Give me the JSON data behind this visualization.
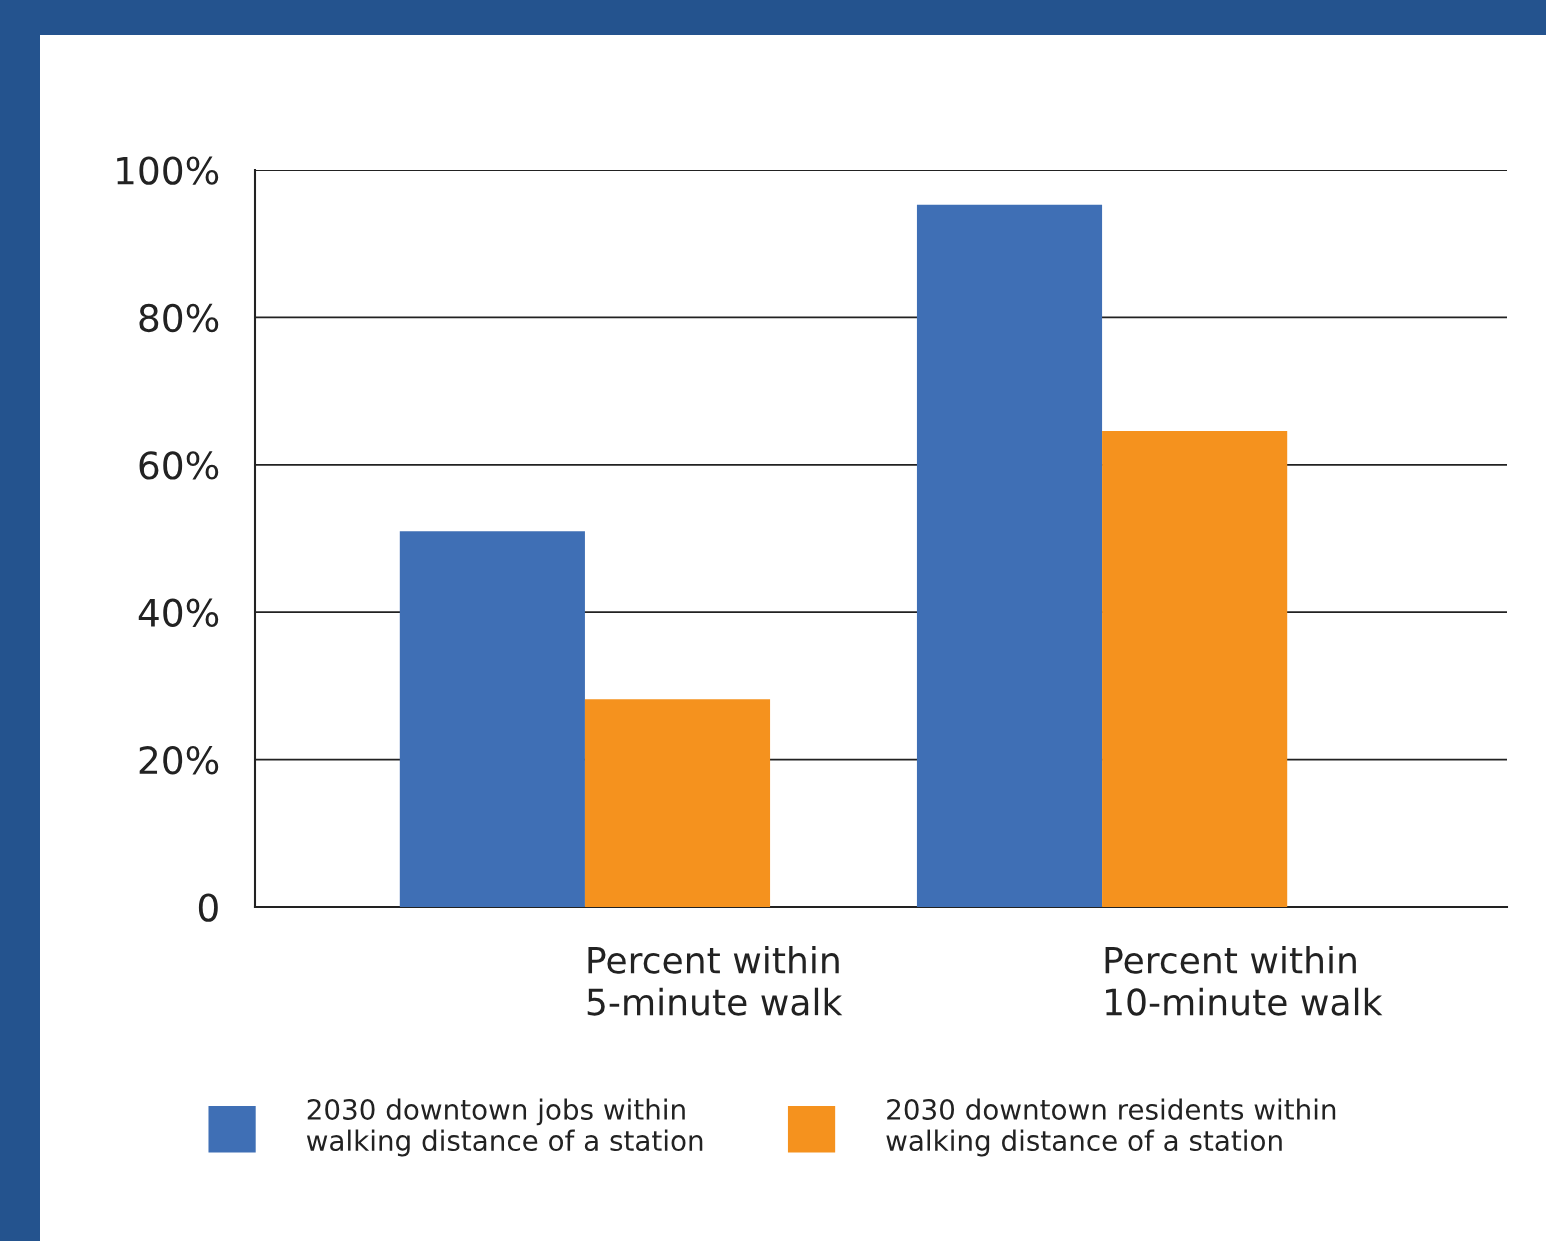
{
  "chart_data": {
    "type": "bar",
    "categories": [
      "Percent within\n5-minute walk",
      "Percent within\n10-minute walk"
    ],
    "series": [
      {
        "name": "2030 downtown jobs within\nwalking distance of a station",
        "color": "#3f6fb5",
        "values": [
          51.0,
          95.3
        ]
      },
      {
        "name": "2030 downtown residents within\nwalking distance of a station",
        "color": "#f5921e",
        "values": [
          28.2,
          64.6
        ]
      }
    ],
    "ylim": [
      0,
      100
    ],
    "yticks": [
      {
        "value": 0,
        "label": "0"
      },
      {
        "value": 20,
        "label": "20%"
      },
      {
        "value": 40,
        "label": "40%"
      },
      {
        "value": 60,
        "label": "60%"
      },
      {
        "value": 80,
        "label": "80%"
      },
      {
        "value": 100,
        "label": "100%"
      }
    ],
    "grid": "y",
    "legend": "bottom"
  }
}
